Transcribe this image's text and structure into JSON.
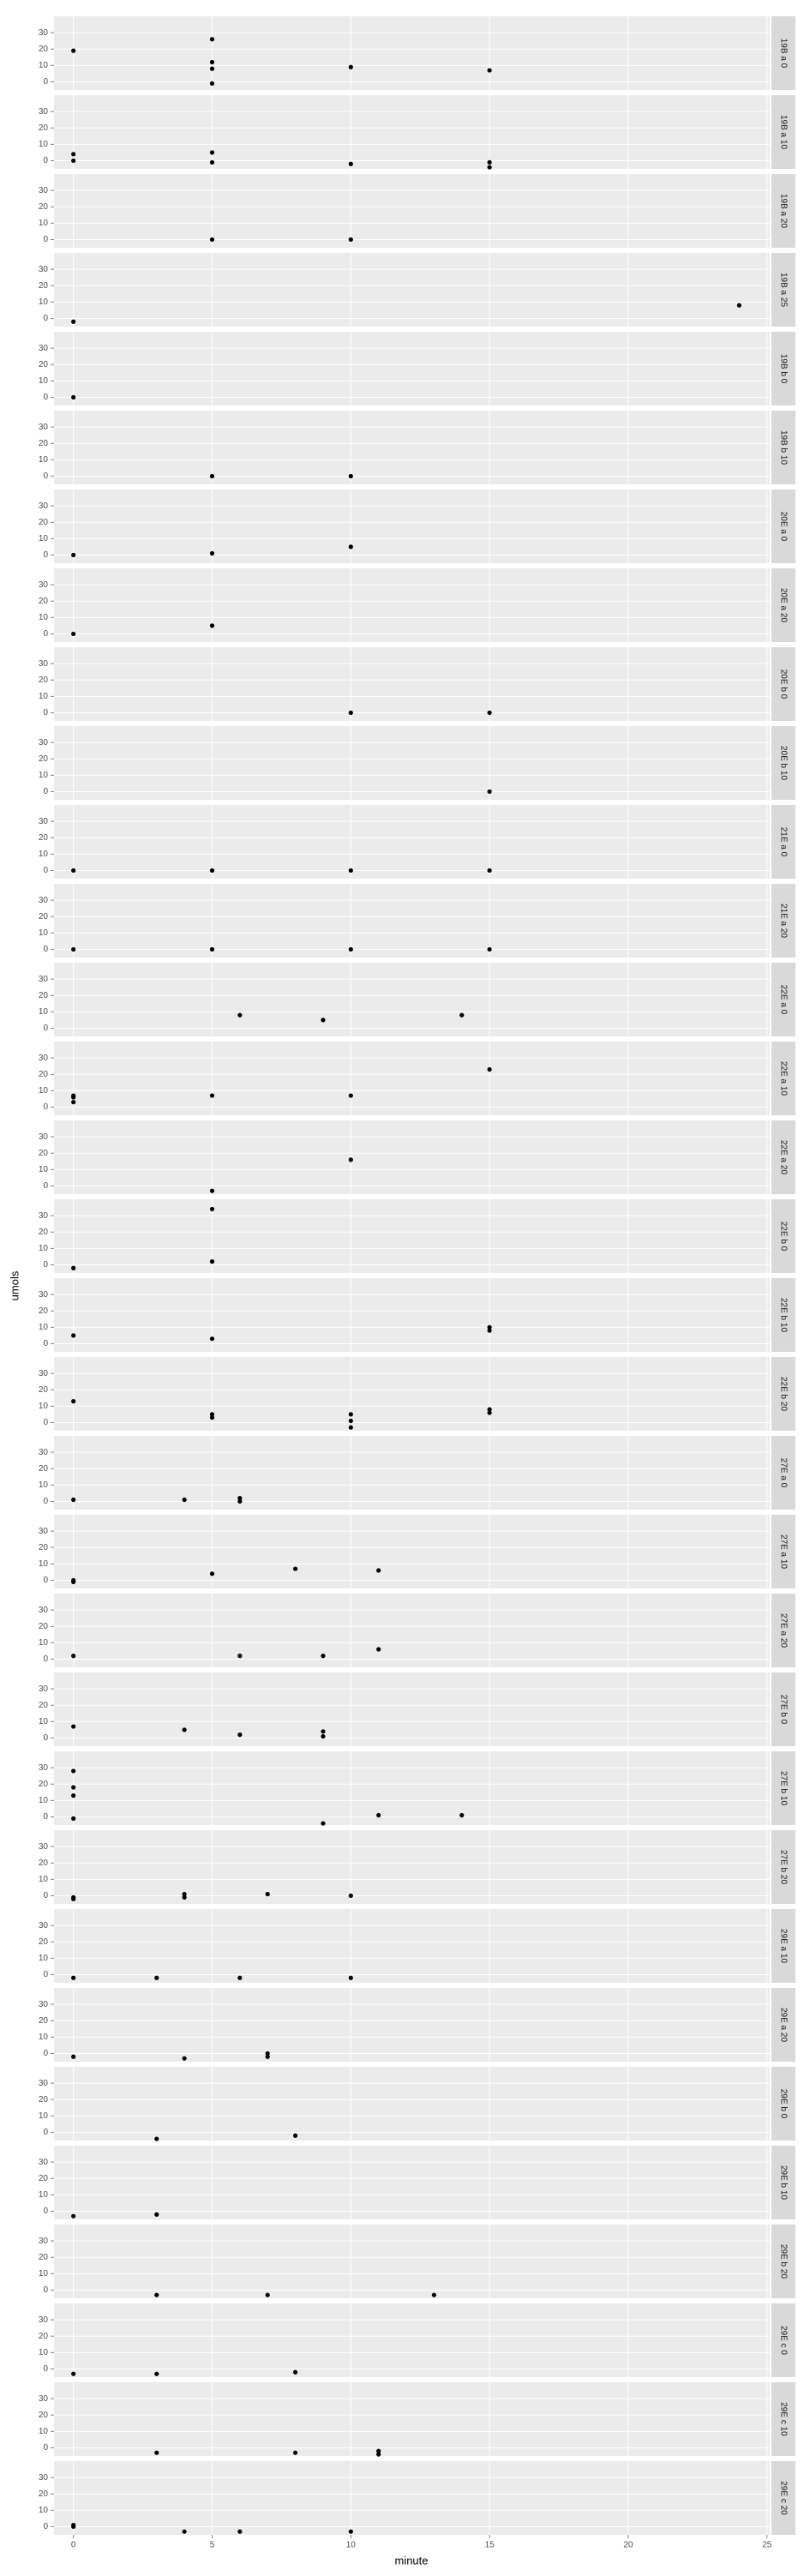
{
  "chart_data": {
    "type": "scatter",
    "x_label": "minute",
    "y_label": "umols",
    "xlim": [
      -0.7,
      25.1
    ],
    "ylim": [
      -5,
      40
    ],
    "xticks": [
      0,
      5,
      10,
      15,
      20,
      25
    ],
    "yticks": [
      0,
      10,
      20,
      30
    ],
    "grid": true,
    "color": "#000000",
    "panels": [
      {
        "label": "19B a 0",
        "x": [
          0,
          5,
          5,
          5,
          5,
          10,
          15
        ],
        "y": [
          19,
          26,
          12,
          8,
          -1,
          9,
          7
        ]
      },
      {
        "label": "19B a 10",
        "x": [
          0,
          0,
          5,
          5,
          10,
          15,
          15
        ],
        "y": [
          4,
          0,
          5,
          -1,
          -2,
          -1,
          -4
        ]
      },
      {
        "label": "19B a 20",
        "x": [
          5,
          10
        ],
        "y": [
          0,
          0
        ]
      },
      {
        "label": "19B a 25",
        "x": [
          0,
          24
        ],
        "y": [
          -2,
          8
        ]
      },
      {
        "label": "19B b 0",
        "x": [
          0
        ],
        "y": [
          0
        ]
      },
      {
        "label": "19B b 10",
        "x": [
          5,
          10
        ],
        "y": [
          0,
          0
        ]
      },
      {
        "label": "20E a 0",
        "x": [
          0,
          5,
          10
        ],
        "y": [
          0,
          1,
          5
        ]
      },
      {
        "label": "20E a 20",
        "x": [
          0,
          5
        ],
        "y": [
          0,
          5
        ]
      },
      {
        "label": "20E b 0",
        "x": [
          10,
          15
        ],
        "y": [
          0,
          0
        ]
      },
      {
        "label": "20E b 10",
        "x": [
          15
        ],
        "y": [
          0
        ]
      },
      {
        "label": "21E a 0",
        "x": [
          0,
          5,
          10,
          15
        ],
        "y": [
          0,
          0,
          0,
          0
        ]
      },
      {
        "label": "21E a 20",
        "x": [
          0,
          5,
          10,
          15
        ],
        "y": [
          0,
          0,
          0,
          0
        ]
      },
      {
        "label": "22E a 0",
        "x": [
          6,
          9,
          14
        ],
        "y": [
          8,
          5,
          8
        ]
      },
      {
        "label": "22E a 10",
        "x": [
          0,
          0,
          0,
          5,
          10,
          15
        ],
        "y": [
          7,
          6,
          3,
          7,
          7,
          23
        ]
      },
      {
        "label": "22E a 20",
        "x": [
          5,
          10
        ],
        "y": [
          -3,
          16
        ]
      },
      {
        "label": "22E b 0",
        "x": [
          5,
          5,
          0
        ],
        "y": [
          34,
          2,
          -2
        ]
      },
      {
        "label": "22E b 10",
        "x": [
          0,
          5,
          15,
          15
        ],
        "y": [
          5,
          3,
          10,
          8
        ]
      },
      {
        "label": "22E b 20",
        "x": [
          0,
          5,
          5,
          10,
          10,
          10,
          15,
          15
        ],
        "y": [
          13,
          5,
          3,
          5,
          1,
          -3,
          8,
          6
        ]
      },
      {
        "label": "27E a 0",
        "x": [
          0,
          4,
          6,
          6
        ],
        "y": [
          1,
          1,
          2,
          0
        ]
      },
      {
        "label": "27E a 10",
        "x": [
          0,
          0,
          5,
          8,
          11
        ],
        "y": [
          0,
          -1,
          4,
          7,
          6
        ]
      },
      {
        "label": "27E a 20",
        "x": [
          0,
          6,
          9,
          11
        ],
        "y": [
          2,
          2,
          2,
          6
        ]
      },
      {
        "label": "27E b 0",
        "x": [
          0,
          4,
          6,
          9,
          9
        ],
        "y": [
          7,
          5,
          2,
          4,
          1
        ]
      },
      {
        "label": "27E b 10",
        "x": [
          0,
          0,
          0,
          0,
          9,
          11,
          14
        ],
        "y": [
          28,
          18,
          13,
          -1,
          -4,
          1,
          1
        ]
      },
      {
        "label": "27E b 20",
        "x": [
          0,
          0,
          4,
          4,
          7,
          10
        ],
        "y": [
          -1,
          -2,
          1,
          -1,
          1,
          0
        ]
      },
      {
        "label": "29E a 10",
        "x": [
          0,
          3,
          6,
          10
        ],
        "y": [
          -2,
          -2,
          -2,
          -2
        ]
      },
      {
        "label": "29E a 20",
        "x": [
          0,
          4,
          7,
          7
        ],
        "y": [
          -2,
          -3,
          0,
          -2
        ]
      },
      {
        "label": "29E b 0",
        "x": [
          3,
          8
        ],
        "y": [
          -4,
          -2
        ]
      },
      {
        "label": "29E b 10",
        "x": [
          0,
          3
        ],
        "y": [
          -3,
          -2
        ]
      },
      {
        "label": "29E b 20",
        "x": [
          3,
          7,
          13
        ],
        "y": [
          -3,
          -3,
          -3
        ]
      },
      {
        "label": "29E c 0",
        "x": [
          0,
          3,
          8
        ],
        "y": [
          -3,
          -3,
          -2
        ]
      },
      {
        "label": "29E c 10",
        "x": [
          3,
          8,
          11,
          11
        ],
        "y": [
          -3,
          -3,
          -2,
          -4
        ]
      },
      {
        "label": "29E c 20",
        "x": [
          0,
          0,
          4,
          6,
          10
        ],
        "y": [
          1,
          0,
          -3,
          -3,
          -3
        ]
      }
    ]
  }
}
